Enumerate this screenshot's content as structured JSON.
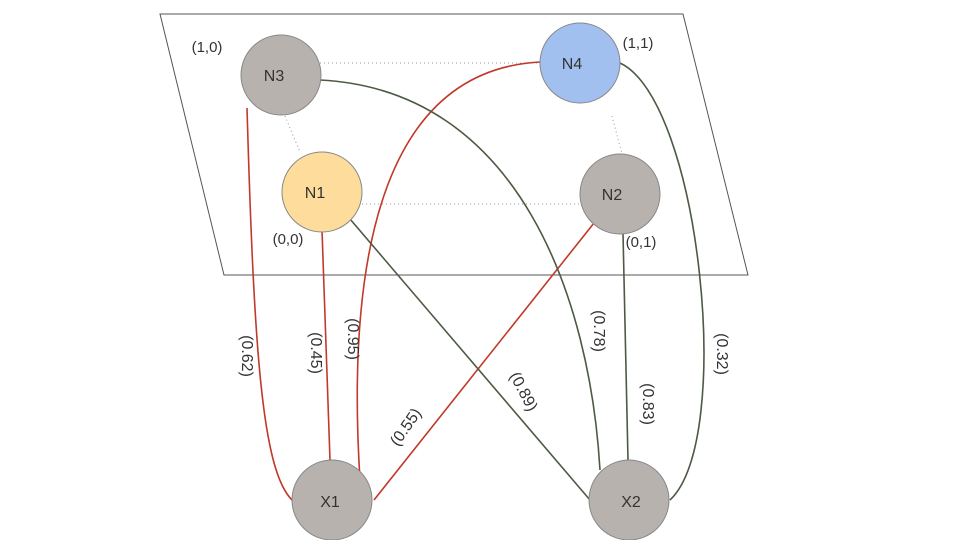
{
  "colors": {
    "red_edge": "#c0392b",
    "dark_edge": "#4d5a43",
    "grid_line": "#999999",
    "plane_border": "#555555",
    "node_gray": "#b7b2ae",
    "node_yellow": "#fedc9b",
    "node_blue": "#a2c0ef",
    "node_stroke": "#888888"
  },
  "nodes": [
    {
      "id": "N3",
      "label": "N3",
      "coord": "(1,0)",
      "color": "node_gray"
    },
    {
      "id": "N4",
      "label": "N4",
      "coord": "(1,1)",
      "color": "node_blue"
    },
    {
      "id": "N1",
      "label": "N1",
      "coord": "(0,0)",
      "color": "node_yellow"
    },
    {
      "id": "N2",
      "label": "N2",
      "coord": "(0,1)",
      "color": "node_gray"
    },
    {
      "id": "X1",
      "label": "X1",
      "coord": "",
      "color": "node_gray"
    },
    {
      "id": "X2",
      "label": "X2",
      "coord": "",
      "color": "node_gray"
    }
  ],
  "edges": [
    {
      "from": "X1",
      "to": "N3",
      "weight": "(0.62)",
      "color": "red_edge"
    },
    {
      "from": "X1",
      "to": "N1",
      "weight": "(0.45)",
      "color": "red_edge"
    },
    {
      "from": "X1",
      "to": "N4",
      "weight": "(0.95)",
      "color": "red_edge"
    },
    {
      "from": "X1",
      "to": "N2",
      "weight": "(0.55)",
      "color": "red_edge"
    },
    {
      "from": "X2",
      "to": "N1",
      "weight": "(0.89)",
      "color": "dark_edge"
    },
    {
      "from": "X2",
      "to": "N3",
      "weight": "(0.78)",
      "color": "dark_edge"
    },
    {
      "from": "X2",
      "to": "N2",
      "weight": "(0.83)",
      "color": "dark_edge"
    },
    {
      "from": "X2",
      "to": "N4",
      "weight": "(0.32)",
      "color": "dark_edge"
    }
  ]
}
